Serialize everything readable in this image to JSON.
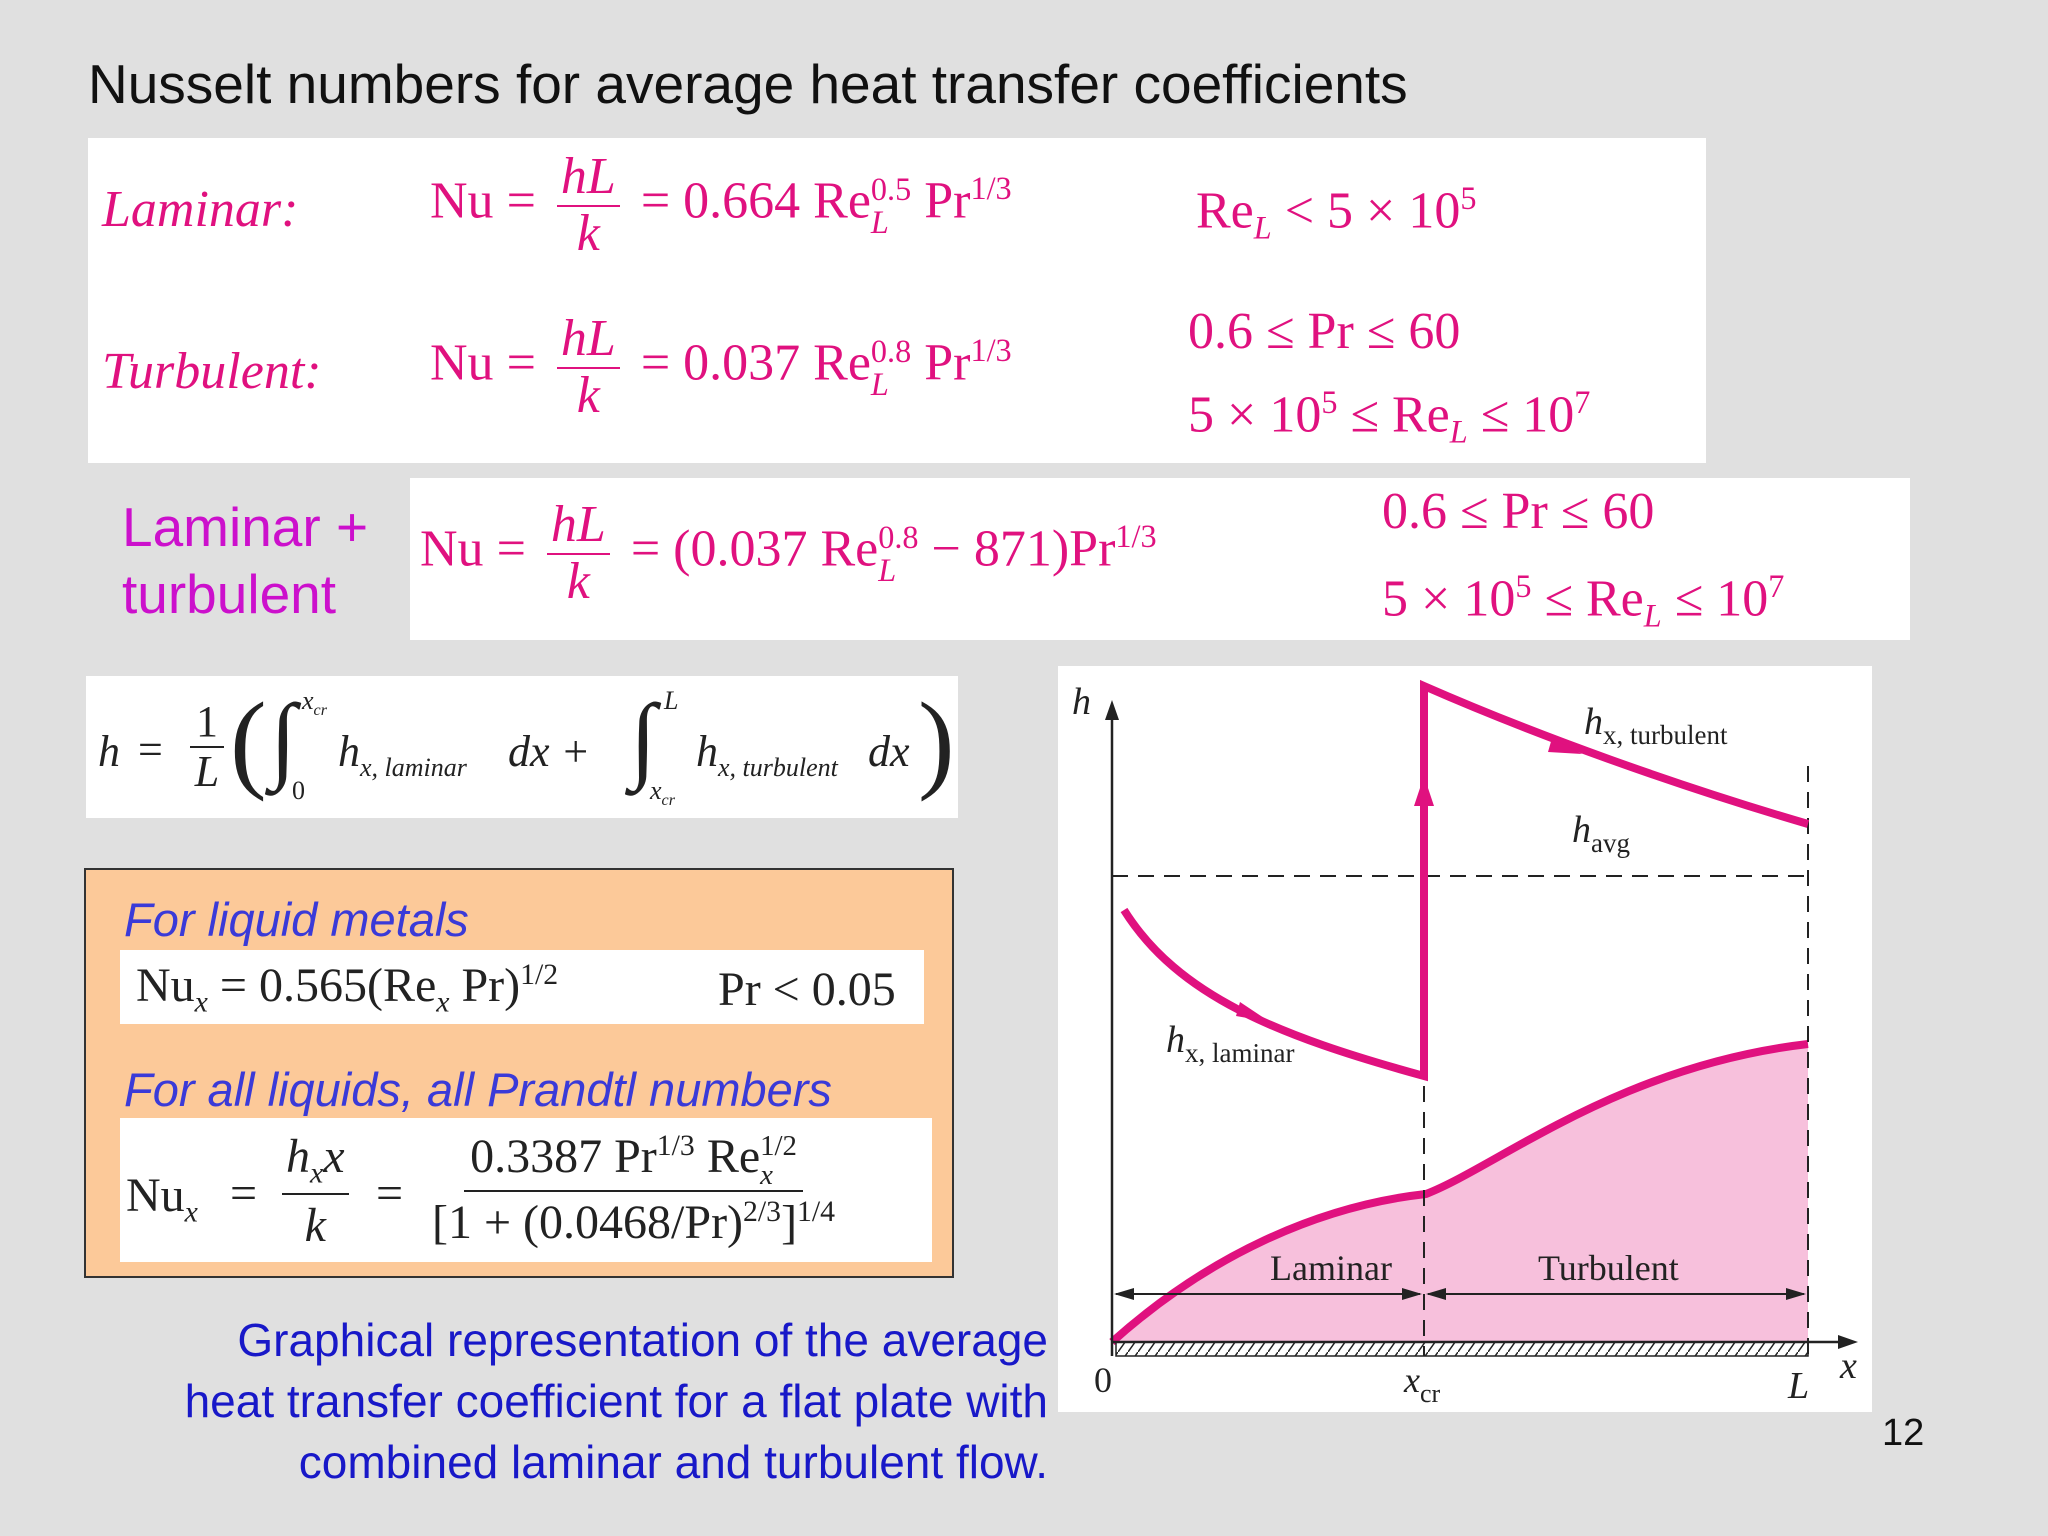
{
  "slide": {
    "title": "Nusselt numbers for average heat transfer coefficients",
    "page_number": "12"
  },
  "correlations": {
    "laminar": {
      "label": "Laminar:",
      "lhs": "Nu",
      "frac_num": "hL",
      "frac_den": "k",
      "rhs": "= 0.664 Re",
      "re_sub": "L",
      "re_sup": "0.5",
      "pr": "Pr",
      "pr_sup": "1/3",
      "condition": "Re",
      "condition_sub": "L",
      "condition_rest": "< 5 × 10",
      "condition_sup": "5"
    },
    "turbulent": {
      "label": "Turbulent:",
      "lhs": "Nu",
      "frac_num": "hL",
      "frac_den": "k",
      "rhs": "= 0.037 Re",
      "re_sub": "L",
      "re_sup": "0.8",
      "pr": "Pr",
      "pr_sup": "1/3",
      "condition_1": "0.6 ≤ Pr ≤ 60",
      "condition_2_a": "5 × 10",
      "condition_2_sup": "5",
      "condition_2_b": " ≤ Re",
      "condition_2_sub": "L",
      "condition_2_c": " ≤ 10",
      "condition_2_sup2": "7"
    },
    "combined": {
      "label_line1": "Laminar +",
      "label_line2": "turbulent",
      "lhs": "Nu",
      "frac_num": "hL",
      "frac_den": "k",
      "rhs_a": "= (0.037 Re",
      "re_sub": "L",
      "re_sup": "0.8",
      "rhs_b": " − 871)Pr",
      "pr_sup": "1/3",
      "condition_1": "0.6 ≤ Pr ≤ 60",
      "condition_2_a": "5 × 10",
      "condition_2_sup": "5",
      "condition_2_b": " ≤ Re",
      "condition_2_sub": "L",
      "condition_2_c": " ≤ 10",
      "condition_2_sup2": "7"
    },
    "integral": {
      "lhs": "h",
      "eq": "=",
      "frac_num": "1",
      "frac_den": "L",
      "int1_upper": "x",
      "int1_upper_sub": "cr",
      "int1_lower": "0",
      "int1_body": "h",
      "int1_body_sub": "x, laminar",
      "dx1": "dx +",
      "int2_upper": "L",
      "int2_lower": "x",
      "int2_lower_sub": "cr",
      "int2_body": "h",
      "int2_body_sub": "x, turbulent",
      "dx2": "dx"
    }
  },
  "liquid_box": {
    "heading_metals": "For liquid metals",
    "metals_lhs": "Nu",
    "metals_lhs_sub": "x",
    "metals_rhs_a": " = 0.565(Re",
    "metals_rhs_sub": "x",
    "metals_rhs_b": " Pr)",
    "metals_rhs_sup": "1/2",
    "metals_condition": "Pr < 0.05",
    "heading_all": "For all liquids, all Prandtl numbers",
    "all_lhs": "Nu",
    "all_lhs_sub": "x",
    "all_frac1_num": "h",
    "all_frac1_num_sub": "x",
    "all_frac1_num_b": "x",
    "all_frac1_den": "k",
    "all_frac2_num_a": "0.3387 Pr",
    "all_frac2_num_sup": "1/3",
    "all_frac2_num_b": " Re",
    "all_frac2_num_sub": "x",
    "all_frac2_num_sup2": "1/2",
    "all_frac2_den_a": "[1 + (0.0468/Pr)",
    "all_frac2_den_sup": "2/3",
    "all_frac2_den_b": "]",
    "all_frac2_den_sup2": "1/4"
  },
  "caption": {
    "line1": "Graphical representation of the average",
    "line2": "heat transfer coefficient for a flat plate with",
    "line3": "combined laminar and turbulent flow."
  },
  "figure": {
    "y_axis_label": "h",
    "x_axis_label": "x",
    "origin_label": "0",
    "xcr_label": "x",
    "xcr_sub": "cr",
    "L_label": "L",
    "turbulent_curve_label": "h",
    "turbulent_curve_sub": "x, turbulent",
    "laminar_curve_label": "h",
    "laminar_curve_sub": "x, laminar",
    "avg_label": "h",
    "avg_sub": "avg",
    "region_laminar": "Laminar",
    "region_turbulent": "Turbulent",
    "colors": {
      "curve": "#e0117f",
      "region_fill": "#f7c0dc",
      "box_fill": "#fcc999"
    }
  }
}
